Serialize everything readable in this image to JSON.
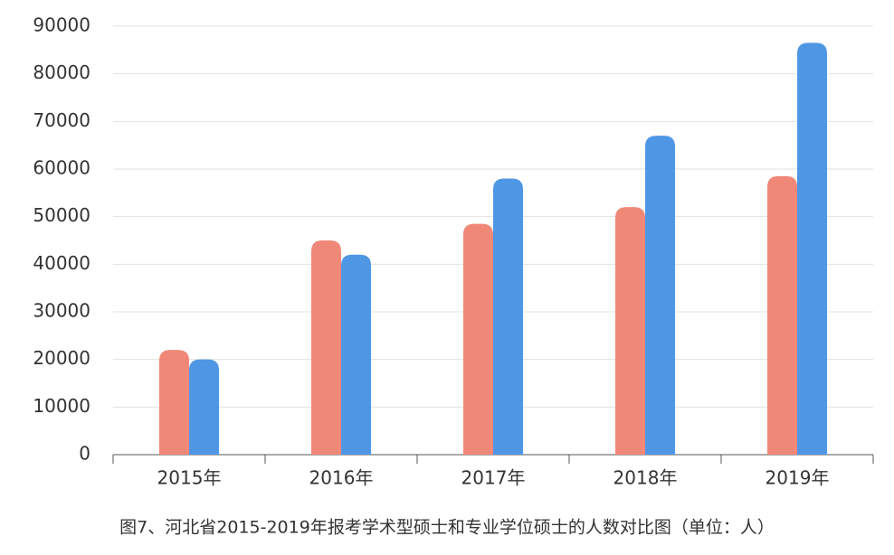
{
  "chart_data": {
    "type": "bar",
    "title": "图7、河北省2015-2019年报考学术型硕士和专业学位硕士的人数对比图（单位：人）",
    "categories": [
      "2015年",
      "2016年",
      "2017年",
      "2018年",
      "2019年"
    ],
    "series": [
      {
        "color": "#f08878",
        "values": [
          22000,
          45000,
          48500,
          52000,
          58500
        ]
      },
      {
        "color": "#4f97e5",
        "values": [
          20000,
          42000,
          58000,
          67000,
          86500
        ]
      }
    ],
    "ylim": [
      0,
      90000
    ],
    "yticks": [
      0,
      10000,
      20000,
      30000,
      40000,
      50000,
      60000,
      70000,
      80000,
      90000
    ],
    "grid": true
  }
}
